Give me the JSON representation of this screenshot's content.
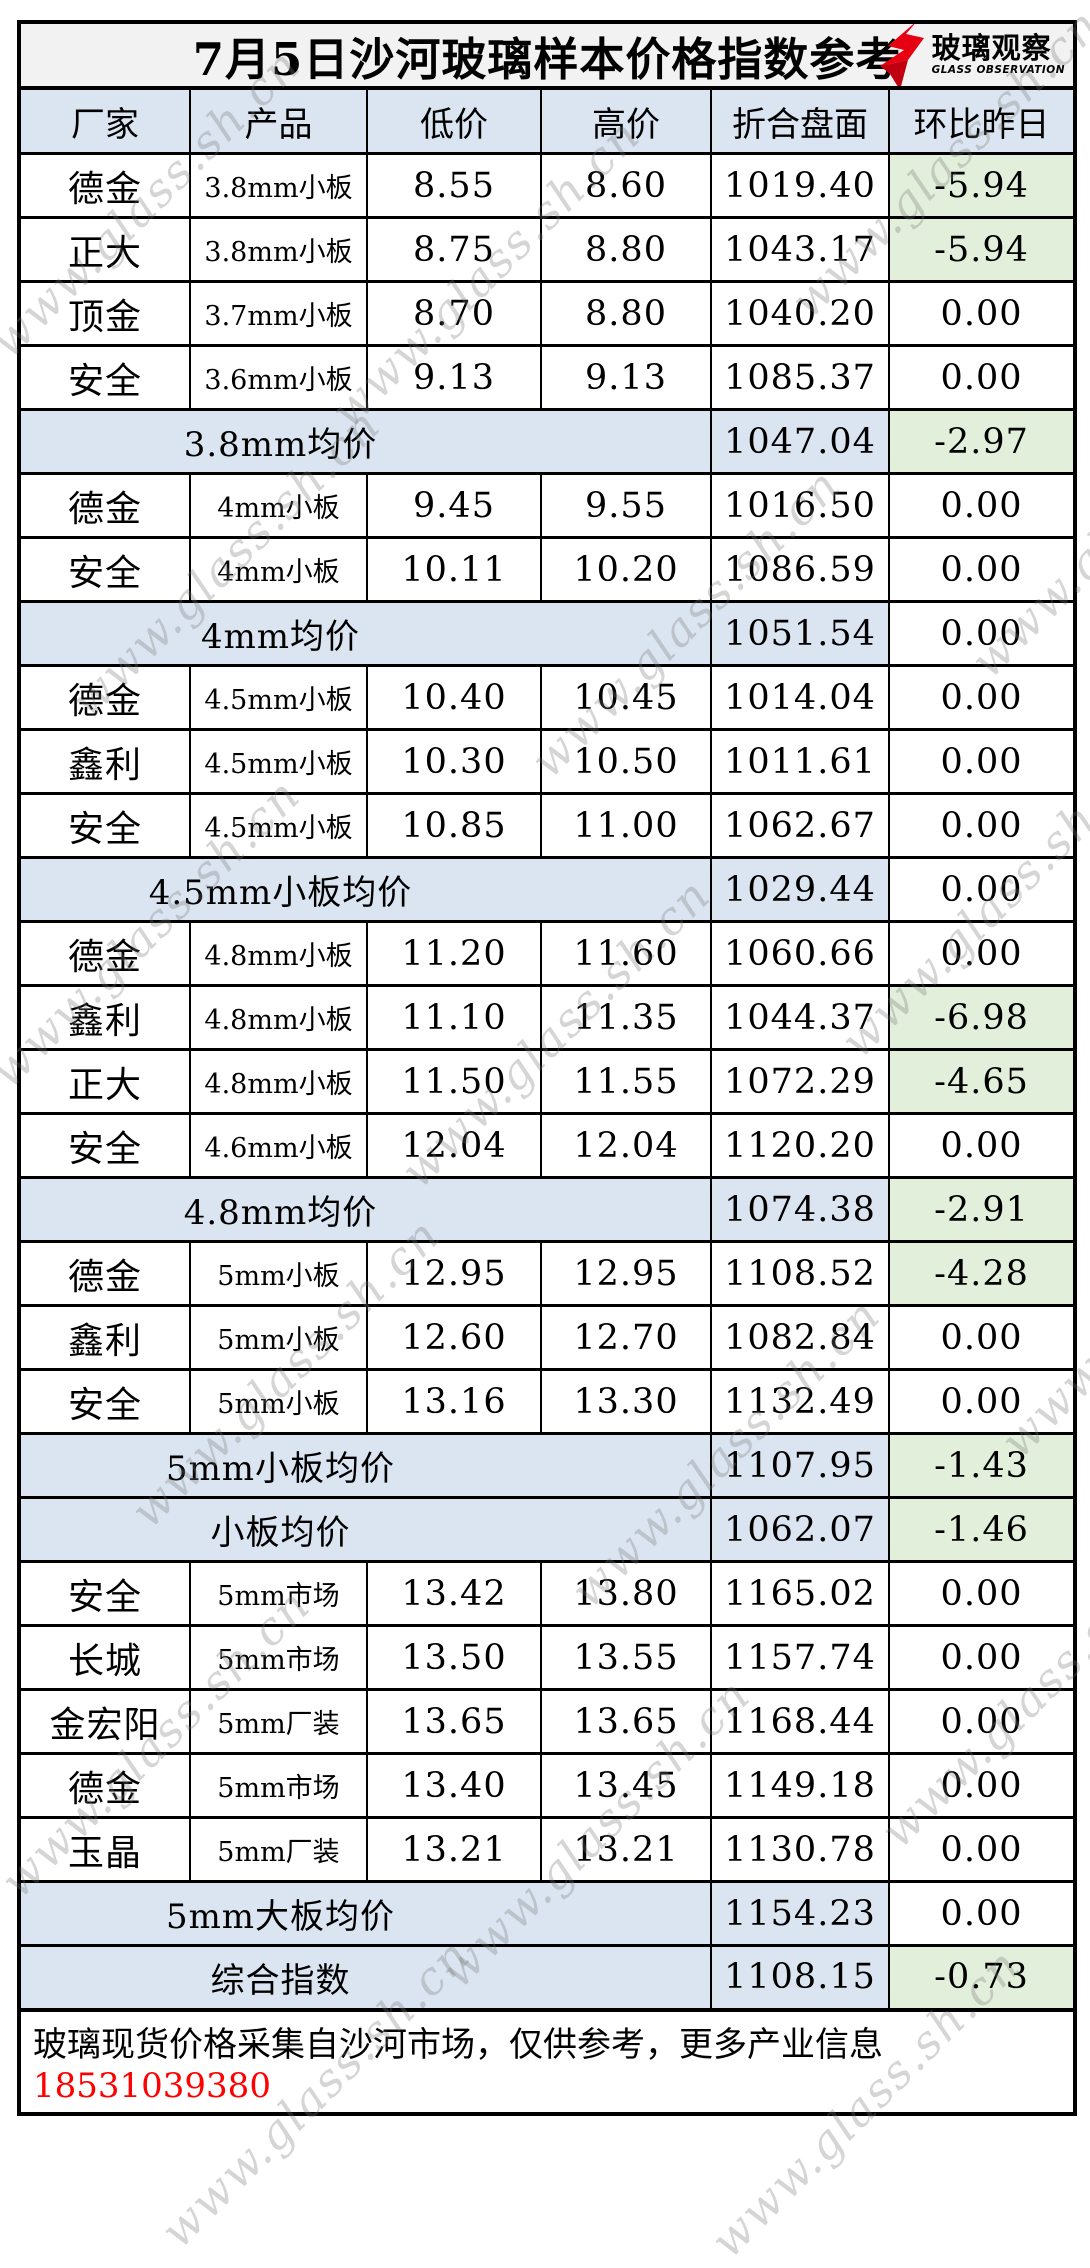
{
  "title": "7月5日沙河玻璃样本价格指数参考",
  "logo": {
    "cn": "玻璃观察",
    "en": "GLASS OBSERVATION"
  },
  "watermark": "www.glass.sh.cn",
  "columns": [
    "厂家",
    "产品",
    "低价",
    "高价",
    "折合盘面",
    "环比昨日"
  ],
  "rows": [
    {
      "type": "data",
      "factory": "德金",
      "product": "3.8mm小板",
      "low": "8.55",
      "high": "8.60",
      "index": "1019.40",
      "change": "-5.94"
    },
    {
      "type": "data",
      "factory": "正大",
      "product": "3.8mm小板",
      "low": "8.75",
      "high": "8.80",
      "index": "1043.17",
      "change": "-5.94"
    },
    {
      "type": "data",
      "factory": "顶金",
      "product": "3.7mm小板",
      "low": "8.70",
      "high": "8.80",
      "index": "1040.20",
      "change": "0.00"
    },
    {
      "type": "data",
      "factory": "安全",
      "product": "3.6mm小板",
      "low": "9.13",
      "high": "9.13",
      "index": "1085.37",
      "change": "0.00"
    },
    {
      "type": "summary",
      "label": "3.8mm均价",
      "index": "1047.04",
      "change": "-2.97"
    },
    {
      "type": "data",
      "factory": "德金",
      "product": "4mm小板",
      "low": "9.45",
      "high": "9.55",
      "index": "1016.50",
      "change": "0.00"
    },
    {
      "type": "data",
      "factory": "安全",
      "product": "4mm小板",
      "low": "10.11",
      "high": "10.20",
      "index": "1086.59",
      "change": "0.00"
    },
    {
      "type": "summary",
      "label": "4mm均价",
      "index": "1051.54",
      "change": "0.00"
    },
    {
      "type": "data",
      "factory": "德金",
      "product": "4.5mm小板",
      "low": "10.40",
      "high": "10.45",
      "index": "1014.04",
      "change": "0.00"
    },
    {
      "type": "data",
      "factory": "鑫利",
      "product": "4.5mm小板",
      "low": "10.30",
      "high": "10.50",
      "index": "1011.61",
      "change": "0.00"
    },
    {
      "type": "data",
      "factory": "安全",
      "product": "4.5mm小板",
      "low": "10.85",
      "high": "11.00",
      "index": "1062.67",
      "change": "0.00"
    },
    {
      "type": "summary",
      "label": "4.5mm小板均价",
      "index": "1029.44",
      "change": "0.00"
    },
    {
      "type": "data",
      "factory": "德金",
      "product": "4.8mm小板",
      "low": "11.20",
      "high": "11.60",
      "index": "1060.66",
      "change": "0.00"
    },
    {
      "type": "data",
      "factory": "鑫利",
      "product": "4.8mm小板",
      "low": "11.10",
      "high": "11.35",
      "index": "1044.37",
      "change": "-6.98"
    },
    {
      "type": "data",
      "factory": "正大",
      "product": "4.8mm小板",
      "low": "11.50",
      "high": "11.55",
      "index": "1072.29",
      "change": "-4.65"
    },
    {
      "type": "data",
      "factory": "安全",
      "product": "4.6mm小板",
      "low": "12.04",
      "high": "12.04",
      "index": "1120.20",
      "change": "0.00"
    },
    {
      "type": "summary",
      "label": "4.8mm均价",
      "index": "1074.38",
      "change": "-2.91"
    },
    {
      "type": "data",
      "factory": "德金",
      "product": "5mm小板",
      "low": "12.95",
      "high": "12.95",
      "index": "1108.52",
      "change": "-4.28"
    },
    {
      "type": "data",
      "factory": "鑫利",
      "product": "5mm小板",
      "low": "12.60",
      "high": "12.70",
      "index": "1082.84",
      "change": "0.00"
    },
    {
      "type": "data",
      "factory": "安全",
      "product": "5mm小板",
      "low": "13.16",
      "high": "13.30",
      "index": "1132.49",
      "change": "0.00"
    },
    {
      "type": "summary",
      "label": "5mm小板均价",
      "index": "1107.95",
      "change": "-1.43"
    },
    {
      "type": "summary",
      "label": "小板均价",
      "index": "1062.07",
      "change": "-1.46"
    },
    {
      "type": "data",
      "factory": "安全",
      "product": "5mm市场",
      "low": "13.42",
      "high": "13.80",
      "index": "1165.02",
      "change": "0.00"
    },
    {
      "type": "data",
      "factory": "长城",
      "product": "5mm市场",
      "low": "13.50",
      "high": "13.55",
      "index": "1157.74",
      "change": "0.00"
    },
    {
      "type": "data",
      "factory": "金宏阳",
      "product": "5mm厂装",
      "low": "13.65",
      "high": "13.65",
      "index": "1168.44",
      "change": "0.00"
    },
    {
      "type": "data",
      "factory": "德金",
      "product": "5mm市场",
      "low": "13.40",
      "high": "13.45",
      "index": "1149.18",
      "change": "0.00"
    },
    {
      "type": "data",
      "factory": "玉晶",
      "product": "5mm厂装",
      "low": "13.21",
      "high": "13.21",
      "index": "1130.78",
      "change": "0.00"
    },
    {
      "type": "summary",
      "label": "5mm大板均价",
      "index": "1154.23",
      "change": "0.00"
    },
    {
      "type": "summary",
      "label": "综合指数",
      "index": "1108.15",
      "change": "-0.73"
    }
  ],
  "footer": {
    "text": "玻璃现货价格采集自沙河市场，仅供参考，更多产业信息",
    "phone": "18531039380"
  },
  "colors": {
    "title_bg": "#f2f2f2",
    "header_bg": "#dbe5f1",
    "summary_bg": "#dbe5f1",
    "negative_bg": "#e2efda",
    "phone_red": "#ff0000",
    "logo_red": "#e60012"
  }
}
